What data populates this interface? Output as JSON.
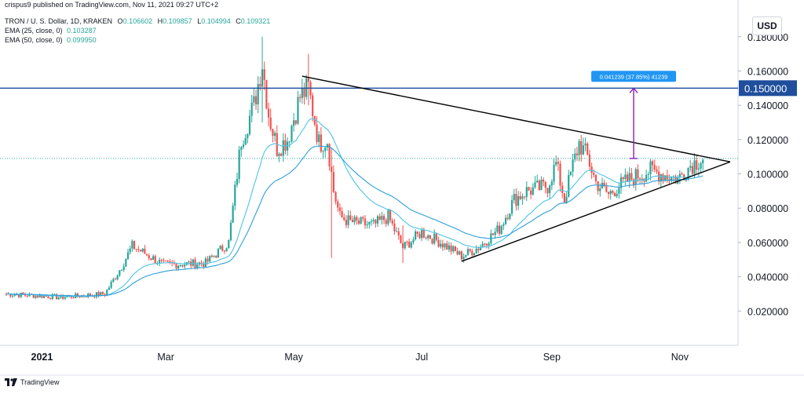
{
  "header": {
    "publish_line": "crispus9 published on TradingView.com, Nov 11, 2021 09:27 UTC+2",
    "symbol": "TRON / U. S. Dollar, 1D, KRAKEN",
    "ohlc": [
      {
        "k": "O",
        "v": "0.106602"
      },
      {
        "k": "H",
        "v": "0.109857"
      },
      {
        "k": "L",
        "v": "0.104994"
      },
      {
        "k": "C",
        "v": "0.109321"
      }
    ],
    "ema25_label": "EMA (25, close, 0)",
    "ema25_value": "0.103287",
    "ema50_label": "EMA (50, close, 0)",
    "ema50_value": "0.099950"
  },
  "currency": "USD",
  "footer": {
    "brand": "TradingView"
  },
  "colors": {
    "up": "#26a69a",
    "down": "#ef5350",
    "ema25": "#4ec3e6",
    "ema50": "#2f9ed8",
    "hline": "#1f4e9c",
    "trendline": "#000000",
    "measure": "#8a1fb8",
    "measure_label_bg": "#2196f3",
    "price_dotted": "#26a69a"
  },
  "chart_data": {
    "type": "candlestick",
    "title": "TRON / U. S. Dollar, 1D, KRAKEN",
    "x_ticks": [
      "2021",
      "Mar",
      "May",
      "Jul",
      "Sep",
      "Nov"
    ],
    "y_ticks": [
      "0.180000",
      "0.160000",
      "0.140000",
      "0.120000",
      "0.100000",
      "0.080000",
      "0.060000",
      "0.040000",
      "0.020000"
    ],
    "ylim": [
      0.0,
      0.195
    ],
    "horizontal_line": {
      "value": 0.15,
      "label": "0.150000"
    },
    "measure": {
      "from": 0.109,
      "to": 0.15,
      "label": "0.041239 (37.85%) 41239"
    },
    "triangle": [
      {
        "from": {
          "date": "2021-05-05",
          "y": 0.157
        },
        "to": {
          "date": "2021-11-25",
          "y": 0.107
        }
      },
      {
        "from": {
          "date": "2021-07-20",
          "y": 0.049
        },
        "to": {
          "date": "2021-11-25",
          "y": 0.107
        }
      }
    ],
    "price_anchors": [
      {
        "date": "2020-12-15",
        "y": 0.03
      },
      {
        "date": "2021-01-10",
        "y": 0.028
      },
      {
        "date": "2021-01-31",
        "y": 0.03
      },
      {
        "date": "2021-02-08",
        "y": 0.046
      },
      {
        "date": "2021-02-13",
        "y": 0.058
      },
      {
        "date": "2021-02-28",
        "y": 0.047
      },
      {
        "date": "2021-03-20",
        "y": 0.048
      },
      {
        "date": "2021-03-31",
        "y": 0.06
      },
      {
        "date": "2021-04-02",
        "y": 0.08
      },
      {
        "date": "2021-04-06",
        "y": 0.12
      },
      {
        "date": "2021-04-12",
        "y": 0.14
      },
      {
        "date": "2021-04-16",
        "y": 0.165
      },
      {
        "date": "2021-04-19",
        "y": 0.135
      },
      {
        "date": "2021-04-23",
        "y": 0.115
      },
      {
        "date": "2021-04-28",
        "y": 0.12
      },
      {
        "date": "2021-05-04",
        "y": 0.145
      },
      {
        "date": "2021-05-08",
        "y": 0.15
      },
      {
        "date": "2021-05-13",
        "y": 0.118
      },
      {
        "date": "2021-05-17",
        "y": 0.12
      },
      {
        "date": "2021-05-20",
        "y": 0.09
      },
      {
        "date": "2021-05-23",
        "y": 0.075
      },
      {
        "date": "2021-05-28",
        "y": 0.072
      },
      {
        "date": "2021-06-08",
        "y": 0.07
      },
      {
        "date": "2021-06-15",
        "y": 0.075
      },
      {
        "date": "2021-06-22",
        "y": 0.057
      },
      {
        "date": "2021-07-01",
        "y": 0.066
      },
      {
        "date": "2021-07-10",
        "y": 0.06
      },
      {
        "date": "2021-07-20",
        "y": 0.052
      },
      {
        "date": "2021-07-28",
        "y": 0.057
      },
      {
        "date": "2021-08-07",
        "y": 0.068
      },
      {
        "date": "2021-08-14",
        "y": 0.085
      },
      {
        "date": "2021-08-20",
        "y": 0.09
      },
      {
        "date": "2021-08-30",
        "y": 0.093
      },
      {
        "date": "2021-09-03",
        "y": 0.106
      },
      {
        "date": "2021-09-07",
        "y": 0.085
      },
      {
        "date": "2021-09-11",
        "y": 0.105
      },
      {
        "date": "2021-09-14",
        "y": 0.118
      },
      {
        "date": "2021-09-18",
        "y": 0.11
      },
      {
        "date": "2021-09-22",
        "y": 0.095
      },
      {
        "date": "2021-09-28",
        "y": 0.088
      },
      {
        "date": "2021-10-03",
        "y": 0.093
      },
      {
        "date": "2021-10-10",
        "y": 0.098
      },
      {
        "date": "2021-10-18",
        "y": 0.102
      },
      {
        "date": "2021-10-26",
        "y": 0.099
      },
      {
        "date": "2021-10-31",
        "y": 0.097
      },
      {
        "date": "2021-11-06",
        "y": 0.105
      },
      {
        "date": "2021-11-10",
        "y": 0.108
      },
      {
        "date": "2021-11-12",
        "y": 0.109
      }
    ],
    "spikes": [
      {
        "date": "2021-04-16",
        "high": 0.18,
        "low": 0.13
      },
      {
        "date": "2021-05-19",
        "high": 0.115,
        "low": 0.051
      },
      {
        "date": "2021-06-22",
        "high": 0.07,
        "low": 0.048
      },
      {
        "date": "2021-05-08",
        "high": 0.17,
        "low": 0.14
      }
    ],
    "ema25_label": "EMA (25, close, 0)",
    "ema50_label": "EMA (50, close, 0)"
  }
}
